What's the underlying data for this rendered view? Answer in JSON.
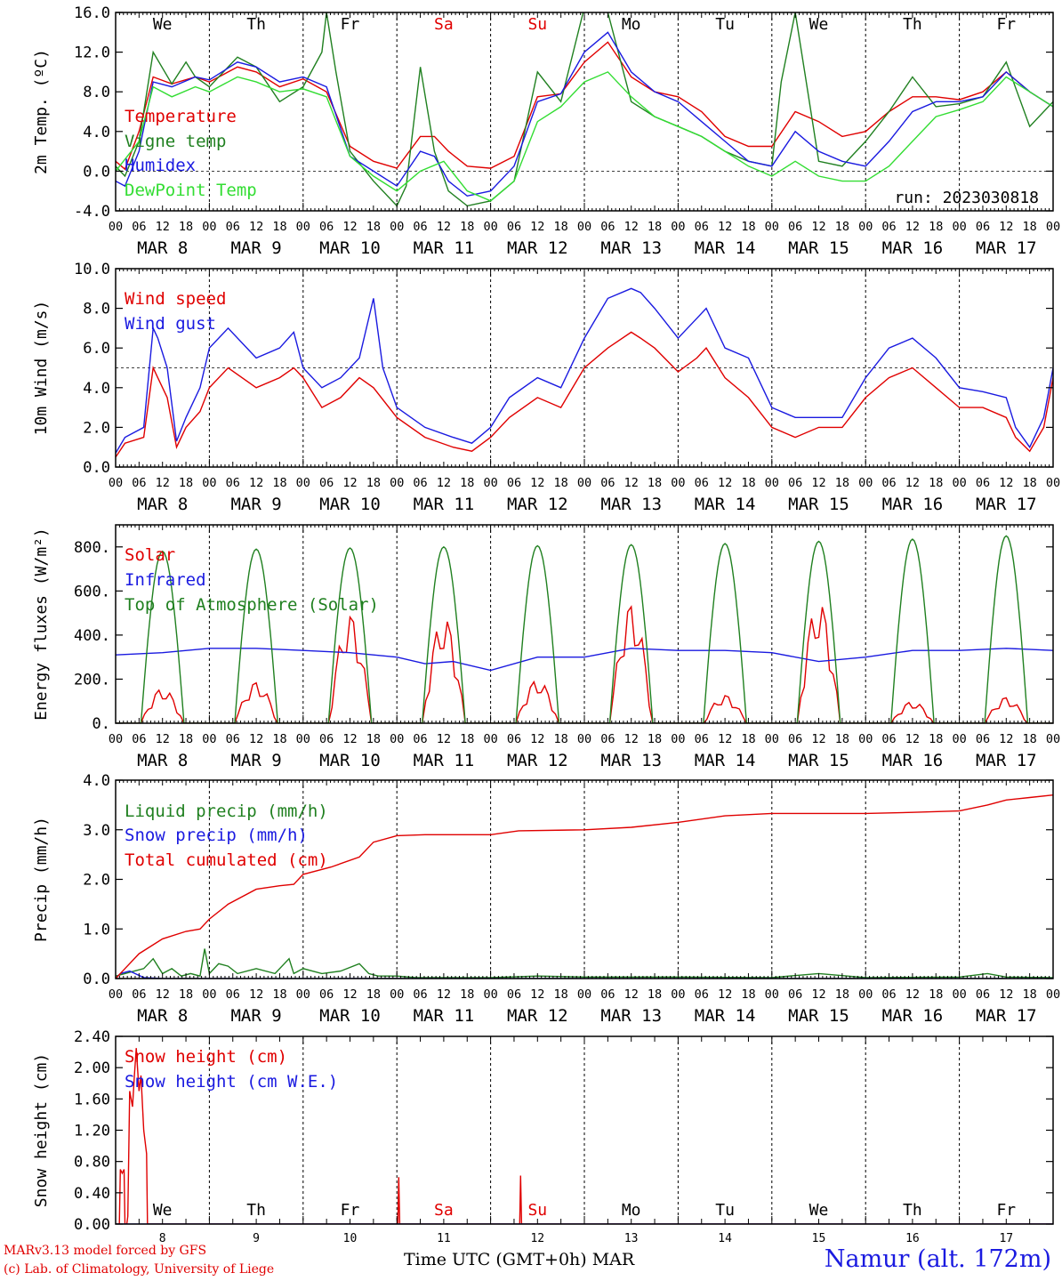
{
  "days_of_week": [
    "We",
    "Th",
    "Fr",
    "Sa",
    "Su",
    "Mo",
    "Tu",
    "We",
    "Th",
    "Fr"
  ],
  "weekend_indices": [
    3,
    4
  ],
  "date_labels": [
    "MAR  8",
    "MAR  9",
    "MAR 10",
    "MAR 11",
    "MAR 12",
    "MAR 13",
    "MAR 14",
    "MAR 15",
    "MAR 16",
    "MAR 17"
  ],
  "hour_ticks": [
    "00",
    "06",
    "12",
    "18"
  ],
  "hour_end": "00",
  "bottom_day_numbers": [
    "8",
    "9",
    "10",
    "11",
    "12",
    "13",
    "14",
    "15",
    "16",
    "17"
  ],
  "colors": {
    "red": "#e00000",
    "green": "#208020",
    "blue": "#1a1ae0",
    "lightgreen": "#33dd33"
  },
  "footer": {
    "model": "MARv3.13 model forced by GFS",
    "lab": "(c) Lab. of Climatology, University of Liege",
    "xlabel": "Time UTC (GMT+0h) MAR",
    "station": "Namur (alt. 172m)"
  },
  "chart_data": [
    {
      "type": "line",
      "ylabel": "2m Temp. (ºC)",
      "ylim": [
        -4,
        16
      ],
      "yticks": [
        "-4.0",
        "0.0",
        "4.0",
        "8.0",
        "12.0",
        "16.0"
      ],
      "ytick_values": [
        -4,
        0,
        4,
        8,
        12,
        16
      ],
      "ref_line": 0,
      "annotation": "run: 2023030818",
      "x_range_days": [
        0,
        10
      ],
      "series": [
        {
          "name": "Temperature",
          "color": "#e00000",
          "x": [
            0,
            0.1,
            0.25,
            0.4,
            0.6,
            0.85,
            1,
            1.3,
            1.5,
            1.75,
            2,
            2.25,
            2.5,
            2.75,
            3,
            3.25,
            3.4,
            3.55,
            3.75,
            4,
            4.25,
            4.5,
            4.75,
            5,
            5.25,
            5.5,
            5.75,
            6,
            6.25,
            6.5,
            6.75,
            7,
            7.25,
            7.5,
            7.75,
            8,
            8.25,
            8.5,
            8.75,
            9,
            9.25,
            9.5,
            9.75,
            10
          ],
          "y": [
            1,
            0.2,
            4,
            9.5,
            8.8,
            9.5,
            9,
            10.5,
            10,
            8.5,
            9.3,
            8,
            2.5,
            1,
            0.3,
            3.5,
            3.5,
            2,
            0.5,
            0.3,
            1.5,
            7.5,
            7.8,
            11,
            13,
            9.5,
            8,
            7.5,
            6,
            3.5,
            2.5,
            2.5,
            6,
            5,
            3.5,
            4,
            6,
            7.5,
            7.5,
            7.2,
            8,
            10,
            8,
            6.5
          ]
        },
        {
          "name": "Vigne temp",
          "color": "#208020",
          "x": [
            0,
            0.1,
            0.25,
            0.4,
            0.6,
            0.75,
            0.85,
            1,
            1.3,
            1.5,
            1.75,
            2,
            2.2,
            2.25,
            2.35,
            2.5,
            2.75,
            3,
            3.1,
            3.25,
            3.4,
            3.55,
            3.75,
            4,
            4.25,
            4.5,
            4.75,
            5,
            5.25,
            5.5,
            5.75,
            6,
            6.25,
            6.5,
            6.75,
            7,
            7.1,
            7.25,
            7.35,
            7.5,
            7.75,
            8,
            8.25,
            8.5,
            8.75,
            9,
            9.25,
            9.5,
            9.75,
            10
          ],
          "y": [
            0.5,
            -0.5,
            3,
            12,
            8.8,
            11,
            9.5,
            8.5,
            11.5,
            10.5,
            7,
            8.5,
            12,
            16,
            10,
            2,
            -1,
            -3.5,
            -1.5,
            10.5,
            2,
            -2,
            -3.5,
            -3,
            -1,
            10,
            7,
            16.5,
            16,
            7,
            5.5,
            4.5,
            3.5,
            2,
            1,
            0.5,
            9,
            16,
            10,
            1,
            0.5,
            3,
            6,
            9.5,
            6.5,
            6.8,
            7.5,
            11,
            4.5,
            7
          ]
        },
        {
          "name": "Humidex",
          "color": "#1a1ae0",
          "x": [
            0,
            0.1,
            0.25,
            0.4,
            0.6,
            0.85,
            1,
            1.3,
            1.5,
            1.75,
            2,
            2.25,
            2.5,
            2.75,
            3,
            3.25,
            3.4,
            3.55,
            3.75,
            4,
            4.25,
            4.5,
            4.75,
            5,
            5.25,
            5.5,
            5.75,
            6,
            6.25,
            6.5,
            6.75,
            7,
            7.25,
            7.5,
            7.75,
            8,
            8.25,
            8.5,
            8.75,
            9,
            9.25,
            9.5,
            9.75,
            10
          ],
          "y": [
            -1,
            -1.5,
            2,
            9,
            8.5,
            9.5,
            9.2,
            11,
            10.5,
            9,
            9.5,
            8.5,
            1.5,
            0,
            -1.5,
            2,
            1.5,
            -1,
            -2.5,
            -2,
            0.5,
            7,
            7.8,
            12,
            14,
            10,
            8,
            7,
            5,
            3,
            1,
            0.5,
            4,
            2,
            1,
            0.5,
            3,
            6,
            7,
            7,
            7.5,
            10,
            8,
            6.5
          ]
        },
        {
          "name": "DewPoint Temp",
          "color": "#33dd33",
          "x": [
            0,
            0.25,
            0.4,
            0.6,
            0.85,
            1,
            1.3,
            1.5,
            1.75,
            2,
            2.25,
            2.5,
            2.75,
            3,
            3.25,
            3.5,
            3.75,
            4,
            4.25,
            4.5,
            4.75,
            5,
            5.25,
            5.5,
            5.75,
            6,
            6.25,
            6.5,
            6.75,
            7,
            7.25,
            7.5,
            7.75,
            8,
            8.25,
            8.5,
            8.75,
            9,
            9.25,
            9.5,
            9.75,
            10
          ],
          "y": [
            0,
            3,
            8.5,
            7.5,
            8.5,
            8,
            9.5,
            9,
            8,
            8.3,
            7.5,
            1.5,
            -0.5,
            -2,
            0,
            1,
            -2,
            -3,
            -1,
            5,
            6.5,
            9,
            10,
            7.5,
            5.5,
            4.5,
            3.5,
            2,
            0.5,
            -0.5,
            1,
            -0.5,
            -1,
            -1,
            0.5,
            3,
            5.5,
            6.2,
            7,
            9.5,
            8,
            6.5
          ]
        }
      ]
    },
    {
      "type": "line",
      "ylabel": "10m Wind (m/s)",
      "ylim": [
        0,
        10
      ],
      "yticks": [
        "0.0",
        "2.0",
        "4.0",
        "6.0",
        "8.0",
        "10.0"
      ],
      "ytick_values": [
        0,
        2,
        4,
        6,
        8,
        10
      ],
      "ref_line": 5,
      "x_range_days": [
        0,
        10
      ],
      "series": [
        {
          "name": "Wind speed",
          "color": "#e00000",
          "x": [
            0,
            0.1,
            0.3,
            0.4,
            0.45,
            0.55,
            0.65,
            0.75,
            0.9,
            1,
            1.2,
            1.5,
            1.75,
            1.9,
            2,
            2.2,
            2.4,
            2.6,
            2.75,
            3,
            3.3,
            3.6,
            3.8,
            4,
            4.2,
            4.5,
            4.75,
            5,
            5.25,
            5.5,
            5.6,
            5.75,
            6,
            6.2,
            6.3,
            6.5,
            6.75,
            7,
            7.25,
            7.5,
            7.75,
            8,
            8.25,
            8.5,
            8.75,
            9,
            9.25,
            9.5,
            9.6,
            9.75,
            9.9,
            10
          ],
          "y": [
            0.5,
            1.2,
            1.5,
            5,
            4.5,
            3.5,
            1,
            2,
            2.8,
            4,
            5,
            4,
            4.5,
            5,
            4.5,
            3,
            3.5,
            4.5,
            4,
            2.5,
            1.5,
            1,
            0.8,
            1.5,
            2.5,
            3.5,
            3,
            5,
            6,
            6.8,
            6.5,
            6,
            4.8,
            5.5,
            6,
            4.5,
            3.5,
            2,
            1.5,
            2,
            2,
            3.5,
            4.5,
            5,
            4,
            3,
            3,
            2.5,
            1.5,
            0.8,
            2,
            4.5
          ]
        },
        {
          "name": "Wind gust",
          "color": "#1a1ae0",
          "x": [
            0,
            0.1,
            0.3,
            0.4,
            0.45,
            0.55,
            0.65,
            0.75,
            0.9,
            1,
            1.2,
            1.5,
            1.75,
            1.9,
            2,
            2.2,
            2.4,
            2.6,
            2.75,
            2.85,
            3,
            3.3,
            3.6,
            3.8,
            4,
            4.2,
            4.5,
            4.75,
            5,
            5.25,
            5.5,
            5.6,
            5.75,
            6,
            6.2,
            6.3,
            6.5,
            6.75,
            7,
            7.25,
            7.5,
            7.75,
            8,
            8.25,
            8.5,
            8.75,
            9,
            9.25,
            9.5,
            9.6,
            9.75,
            9.9,
            10
          ],
          "y": [
            0.7,
            1.5,
            2,
            7,
            6.5,
            5,
            1.3,
            2.5,
            4,
            6,
            7,
            5.5,
            6,
            6.8,
            5,
            4,
            4.5,
            5.5,
            8.5,
            5,
            3,
            2,
            1.5,
            1.2,
            2,
            3.5,
            4.5,
            4,
            6.5,
            8.5,
            9,
            8.8,
            8,
            6.5,
            7.5,
            8,
            6,
            5.5,
            3,
            2.5,
            2.5,
            2.5,
            4.5,
            6,
            6.5,
            5.5,
            4,
            3.8,
            3.5,
            2,
            1,
            2.5,
            5
          ]
        }
      ]
    },
    {
      "type": "line",
      "ylabel": "Energy fluxes (W/m²)",
      "ylim": [
        0,
        900
      ],
      "yticks": [
        "0.",
        "200.",
        "400.",
        "600.",
        "800."
      ],
      "ytick_values": [
        0,
        200,
        400,
        600,
        800
      ],
      "x_range_days": [
        0,
        10
      ],
      "series": [
        {
          "name": "Solar",
          "color": "#e00000",
          "kind": "solar",
          "peaks": [
            160,
            190,
            500,
            490,
            200,
            550,
            130,
            560,
            100,
            120
          ]
        },
        {
          "name": "Infrared",
          "color": "#1a1ae0",
          "x": [
            0,
            0.5,
            1,
            1.5,
            2,
            2.5,
            3,
            3.3,
            3.6,
            4,
            4.5,
            5,
            5.5,
            6,
            6.5,
            7,
            7.5,
            8,
            8.5,
            9,
            9.5,
            10
          ],
          "y": [
            310,
            320,
            340,
            340,
            330,
            320,
            300,
            270,
            280,
            240,
            300,
            300,
            340,
            330,
            330,
            320,
            280,
            300,
            330,
            330,
            340,
            330
          ]
        },
        {
          "name": "Top of Atmosphere (Solar)",
          "color": "#208020",
          "kind": "toa",
          "peaks": [
            780,
            790,
            795,
            800,
            805,
            810,
            815,
            825,
            835,
            850
          ]
        }
      ]
    },
    {
      "type": "line",
      "ylabel": "Precip (mm/h)",
      "ylim": [
        0,
        4
      ],
      "yticks": [
        "0.0",
        "1.0",
        "2.0",
        "3.0",
        "4.0"
      ],
      "ytick_values": [
        0,
        1,
        2,
        3,
        4
      ],
      "x_range_days": [
        0,
        10
      ],
      "series": [
        {
          "name": "Liquid precip (mm/h)",
          "color": "#208020",
          "x": [
            0,
            0.1,
            0.2,
            0.3,
            0.4,
            0.5,
            0.6,
            0.7,
            0.8,
            0.9,
            0.95,
            1,
            1.1,
            1.2,
            1.3,
            1.5,
            1.7,
            1.85,
            1.9,
            2,
            2.2,
            2.4,
            2.6,
            2.7,
            2.8,
            3,
            3.2,
            4,
            4.5,
            5,
            6,
            7,
            7.5,
            8,
            9,
            9.3,
            9.5,
            10
          ],
          "y": [
            0.05,
            0.1,
            0.15,
            0.2,
            0.4,
            0.1,
            0.2,
            0.05,
            0.1,
            0.05,
            0.6,
            0.1,
            0.3,
            0.25,
            0.1,
            0.2,
            0.1,
            0.4,
            0.1,
            0.2,
            0.1,
            0.15,
            0.3,
            0.1,
            0.05,
            0.05,
            0.02,
            0.02,
            0.05,
            0.03,
            0.03,
            0.02,
            0.1,
            0.02,
            0.03,
            0.1,
            0.03,
            0.02
          ]
        },
        {
          "name": "Snow precip (mm/h)",
          "color": "#1a1ae0",
          "x": [
            0,
            0.05,
            0.15,
            0.3,
            0.5,
            10
          ],
          "y": [
            0,
            0.1,
            0.15,
            0.02,
            0,
            0
          ]
        },
        {
          "name": "Total cumulated (cm)",
          "color": "#e00000",
          "x": [
            0,
            0.1,
            0.25,
            0.5,
            0.75,
            0.9,
            1,
            1.2,
            1.5,
            1.75,
            1.9,
            2,
            2.3,
            2.6,
            2.75,
            3,
            3.3,
            4,
            4.3,
            5,
            5.5,
            6,
            6.5,
            7,
            7.5,
            8,
            8.5,
            9,
            9.3,
            9.5,
            9.75,
            10
          ],
          "y": [
            0,
            0.2,
            0.5,
            0.8,
            0.95,
            1,
            1.2,
            1.5,
            1.8,
            1.87,
            1.9,
            2.1,
            2.25,
            2.45,
            2.75,
            2.88,
            2.9,
            2.9,
            2.98,
            3,
            3.05,
            3.15,
            3.28,
            3.33,
            3.33,
            3.33,
            3.35,
            3.38,
            3.5,
            3.6,
            3.65,
            3.7
          ]
        }
      ]
    },
    {
      "type": "line",
      "ylabel": "Snow height (cm)",
      "ylim": [
        0,
        2.4
      ],
      "yticks": [
        "0.00",
        "0.40",
        "0.80",
        "1.20",
        "1.60",
        "2.00",
        "2.40"
      ],
      "ytick_values": [
        0,
        0.4,
        0.8,
        1.2,
        1.6,
        2.0,
        2.4
      ],
      "x_range_days": [
        0,
        10
      ],
      "series": [
        {
          "name": "Snow height (cm)",
          "color": "#e00000",
          "x": [
            0,
            0.04,
            0.05,
            0.07,
            0.09,
            0.1,
            0.11,
            0.12,
            0.13,
            0.15,
            0.18,
            0.2,
            0.22,
            0.25,
            0.27,
            0.3,
            0.33,
            0.34,
            3.01,
            3.02,
            3.03,
            4.31,
            4.32,
            4.33,
            10
          ],
          "y": [
            0,
            0,
            0.7,
            0.65,
            0.7,
            0,
            0,
            0,
            0.1,
            1.7,
            1.5,
            1.9,
            2.25,
            1.7,
            1.9,
            1.2,
            0.9,
            0,
            0,
            0.6,
            0,
            0,
            0.62,
            0,
            0
          ]
        },
        {
          "name": "Snow height (cm W.E.)",
          "color": "#1a1ae0",
          "x": [
            0,
            10
          ],
          "y": [
            0,
            0
          ]
        }
      ]
    }
  ]
}
